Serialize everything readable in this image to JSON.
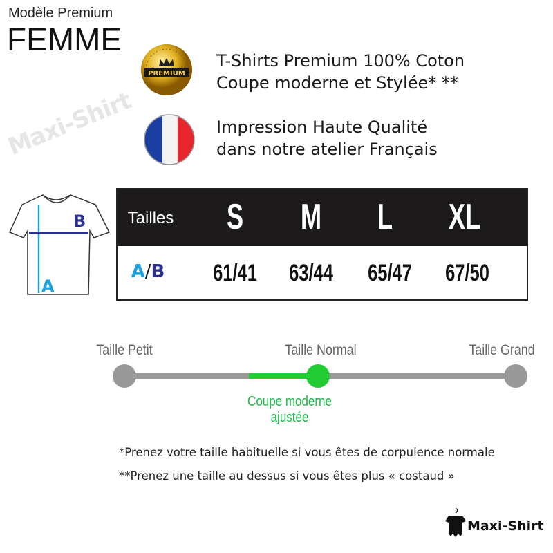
{
  "watermark": "Maxi-Shirt",
  "header": {
    "model": "Modèle Premium",
    "gender": "FEMME"
  },
  "features": [
    {
      "icon": "premium-badge-icon",
      "badge_text": "PREMIUM",
      "line1": "T-Shirts Premium 100% Coton",
      "line2": "Coupe moderne et Stylée* **"
    },
    {
      "icon": "french-flag-icon",
      "line1": "Impression Haute Qualité",
      "line2": "dans notre atelier Français"
    }
  ],
  "diagram": {
    "a": "A",
    "b": "B",
    "colors": {
      "a": "#1aa3e0",
      "b": "#2b2f8f"
    }
  },
  "size_table": {
    "header_label": "Tailles",
    "row_label_a": "A",
    "row_label_sep": "/",
    "row_label_b": "B",
    "sizes": [
      "S",
      "M",
      "L",
      "XL"
    ],
    "values": [
      "61/41",
      "63/44",
      "65/47",
      "67/50"
    ]
  },
  "fit_scale": {
    "labels": [
      "Taille Petit",
      "Taille Normal",
      "Taille Grand"
    ],
    "selected": "Taille Normal",
    "note_line1": "Coupe moderne",
    "note_line2": "ajustée",
    "accent": "#22cc33"
  },
  "notes": [
    "*Prenez votre taille habituelle si vous êtes de corpulence normale",
    "**Prenez une taille au dessus si vous êtes plus « costaud »"
  ],
  "logo": {
    "text": "Maxi-Shirt"
  }
}
